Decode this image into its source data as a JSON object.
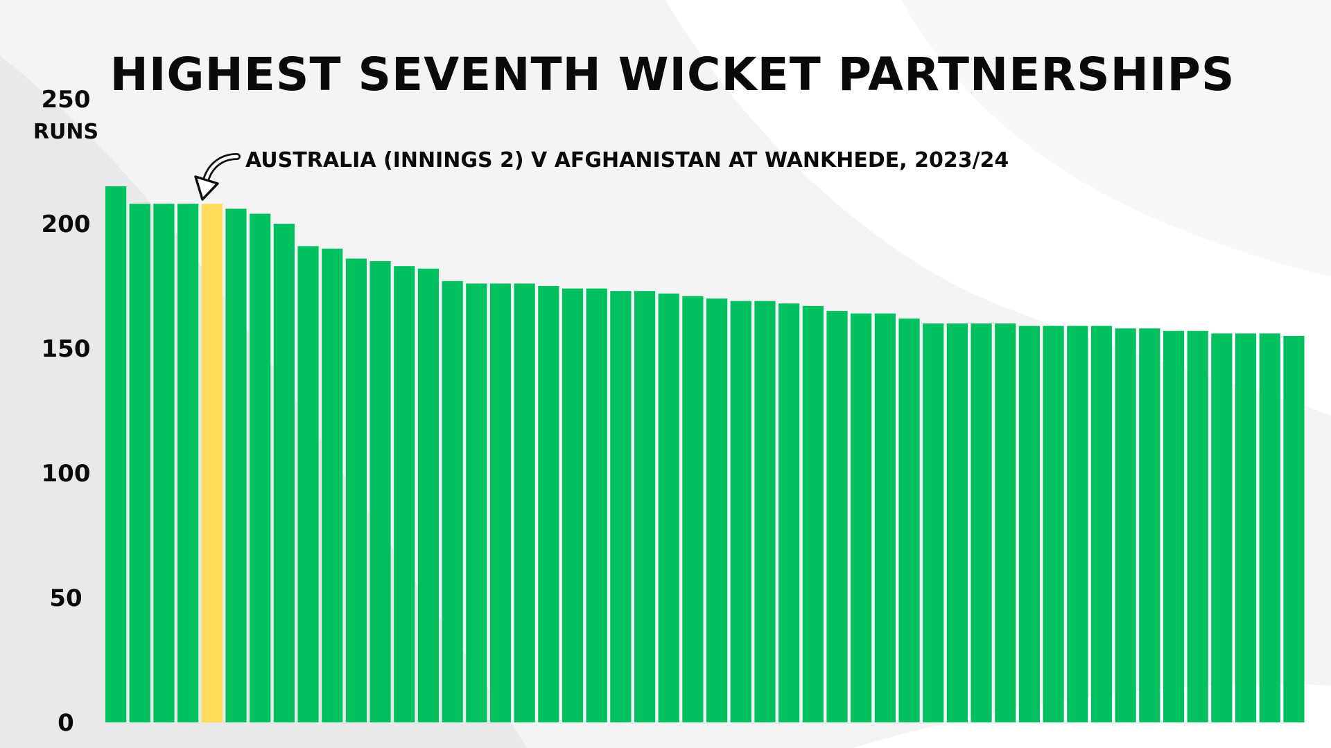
{
  "chart_data": {
    "type": "bar",
    "title": "HIGHEST SEVENTH WICKET PARTNERSHIPS",
    "ylabel_unit": "RUNS",
    "ylim": [
      0,
      250
    ],
    "yticks": [
      0,
      50,
      100,
      150,
      200,
      250
    ],
    "grid": false,
    "values": [
      215,
      208,
      208,
      208,
      208,
      206,
      204,
      200,
      191,
      190,
      186,
      185,
      183,
      182,
      177,
      176,
      176,
      176,
      175,
      174,
      174,
      173,
      173,
      172,
      171,
      170,
      169,
      169,
      168,
      167,
      165,
      164,
      164,
      162,
      160,
      160,
      160,
      160,
      159,
      159,
      159,
      159,
      158,
      158,
      157,
      157,
      156,
      156,
      156,
      155
    ],
    "highlight_index": 4,
    "annotation": {
      "text": "AUSTRALIA (INNINGS 2) V AFGHANISTAN AT WANKHEDE, 2023/24",
      "target_index": 4
    },
    "colors": {
      "bar": "#00c060",
      "highlight": "#ffdc5a",
      "text": "#0a0a0a"
    }
  }
}
